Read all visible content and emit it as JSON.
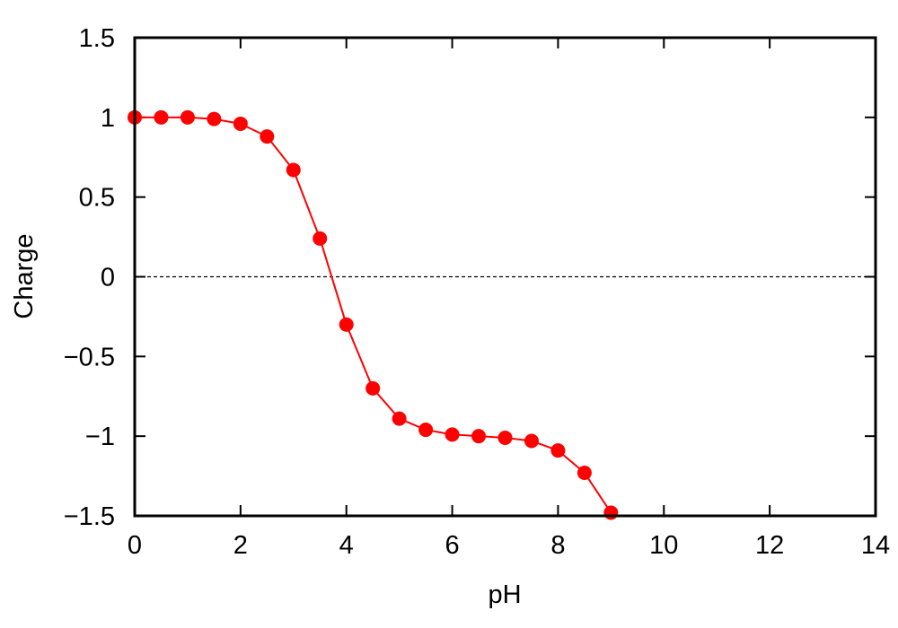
{
  "chart_data": {
    "type": "line",
    "xlabel": "pH",
    "ylabel": "Charge",
    "x": [
      0,
      0.5,
      1,
      1.5,
      2,
      2.5,
      3,
      3.5,
      4,
      4.5,
      5,
      5.5,
      6,
      6.5,
      7,
      7.5,
      8,
      8.5,
      9
    ],
    "values": [
      1,
      1,
      1,
      0.99,
      0.96,
      0.88,
      0.67,
      0.24,
      -0.3,
      -0.7,
      -0.89,
      -0.96,
      -0.99,
      -1.0,
      -1.01,
      -1.03,
      -1.09,
      -1.23,
      -1.48
    ],
    "color": "#ff0000",
    "xlim": [
      0,
      14
    ],
    "xticks": [
      0,
      2,
      4,
      6,
      8,
      10,
      12,
      14
    ],
    "ylim": [
      -1.5,
      1.5
    ],
    "yticks": [
      {
        "value": -1.5,
        "label": "−1.5"
      },
      {
        "value": -1,
        "label": "−1"
      },
      {
        "value": -0.5,
        "label": "−0.5"
      },
      0,
      0.5,
      1,
      1.5
    ],
    "reference_line": 0
  }
}
